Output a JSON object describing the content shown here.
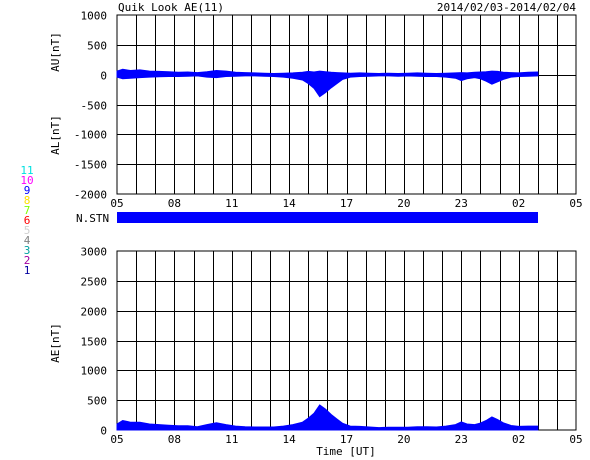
{
  "header": {
    "title": "Quik Look AE(11)",
    "date_range": "2014/02/03-2014/02/04"
  },
  "legend": {
    "station_label": "N.STN",
    "items": [
      {
        "label": "11",
        "color": "#00e0e0"
      },
      {
        "label": "10",
        "color": "#ff00ff"
      },
      {
        "label": "9",
        "color": "#0000ff"
      },
      {
        "label": "8",
        "color": "#ffe000"
      },
      {
        "label": "7",
        "color": "#80ff00"
      },
      {
        "label": "6",
        "color": "#ff0000"
      },
      {
        "label": "5",
        "color": "#d0d0d0"
      },
      {
        "label": "4",
        "color": "#808080"
      },
      {
        "label": "3",
        "color": "#00a0a0"
      },
      {
        "label": "2",
        "color": "#a000a0"
      },
      {
        "label": "1",
        "color": "#0000a0"
      }
    ]
  },
  "colors": {
    "fill": "#0000ff",
    "grid": "#000000",
    "axis": "#000000"
  },
  "chart_data": [
    {
      "type": "area",
      "name": "AU/AL",
      "ylabel_top": "AU[nT]",
      "ylabel_bottom": "AL[nT]",
      "ylim": [
        -2000,
        1000
      ],
      "yticks": [
        "1000",
        "500",
        "0",
        "-500",
        "-1000",
        "-1500",
        "-2000"
      ],
      "ytick_values": [
        1000,
        500,
        0,
        -500,
        -1000,
        -1500,
        -2000
      ],
      "xticks": [
        "05",
        "08",
        "11",
        "14",
        "17",
        "20",
        "23",
        "02",
        "05"
      ],
      "xlim_hours": [
        5,
        29
      ],
      "grid": true,
      "upper_series": {
        "name": "AU",
        "x": [
          5.0,
          5.3,
          5.7,
          6.2,
          6.7,
          7.2,
          7.7,
          8.2,
          8.7,
          9.2,
          9.7,
          10.2,
          10.7,
          11.2,
          11.7,
          12.2,
          12.7,
          13.2,
          13.7,
          14.2,
          14.7,
          15.0,
          15.3,
          15.6,
          15.9,
          16.2,
          16.5,
          16.8,
          17.2,
          17.7,
          18.2,
          18.7,
          19.2,
          19.7,
          20.2,
          20.7,
          21.2,
          21.7,
          22.2,
          22.7,
          23.0,
          23.3,
          23.7,
          24.0,
          24.3,
          24.6,
          24.9,
          25.2,
          25.6,
          26.0,
          26.5,
          27.0
        ],
        "y": [
          60,
          90,
          70,
          80,
          60,
          55,
          50,
          40,
          45,
          35,
          50,
          70,
          60,
          40,
          35,
          30,
          25,
          20,
          25,
          30,
          40,
          55,
          45,
          60,
          50,
          40,
          35,
          30,
          25,
          30,
          25,
          20,
          25,
          20,
          25,
          30,
          25,
          20,
          25,
          30,
          35,
          30,
          40,
          45,
          50,
          60,
          55,
          40,
          35,
          30,
          40,
          45
        ]
      },
      "lower_series": {
        "name": "AL",
        "x": [
          5.0,
          5.3,
          5.7,
          6.2,
          6.7,
          7.2,
          7.7,
          8.2,
          8.7,
          9.2,
          9.7,
          10.2,
          10.7,
          11.2,
          11.7,
          12.2,
          12.7,
          13.2,
          13.7,
          14.2,
          14.7,
          15.0,
          15.3,
          15.6,
          15.9,
          16.2,
          16.5,
          16.8,
          17.2,
          17.7,
          18.2,
          18.7,
          19.2,
          19.7,
          20.2,
          20.7,
          21.2,
          21.7,
          22.2,
          22.7,
          23.0,
          23.3,
          23.7,
          24.0,
          24.3,
          24.6,
          24.9,
          25.2,
          25.6,
          26.0,
          26.5,
          27.0
        ],
        "y": [
          -40,
          -70,
          -60,
          -50,
          -40,
          -35,
          -30,
          -30,
          -25,
          -20,
          -40,
          -50,
          -30,
          -25,
          -20,
          -20,
          -25,
          -30,
          -40,
          -60,
          -90,
          -150,
          -230,
          -370,
          -300,
          -220,
          -150,
          -80,
          -40,
          -30,
          -25,
          -20,
          -20,
          -25,
          -20,
          -25,
          -30,
          -30,
          -40,
          -60,
          -100,
          -70,
          -50,
          -70,
          -110,
          -160,
          -120,
          -80,
          -40,
          -30,
          -25,
          -20
        ]
      }
    },
    {
      "type": "area",
      "name": "AE",
      "ylabel": "AE[nT]",
      "xlabel": "Time [UT]",
      "ylim": [
        0,
        3000
      ],
      "yticks": [
        "3000",
        "2500",
        "2000",
        "1500",
        "1000",
        "500",
        "0"
      ],
      "ytick_values": [
        3000,
        2500,
        2000,
        1500,
        1000,
        500,
        0
      ],
      "xticks": [
        "05",
        "08",
        "11",
        "14",
        "17",
        "20",
        "23",
        "02",
        "05"
      ],
      "xlim_hours": [
        5,
        29
      ],
      "grid": true,
      "series": [
        {
          "x": [
            5.0,
            5.3,
            5.7,
            6.2,
            6.7,
            7.2,
            7.7,
            8.2,
            8.7,
            9.2,
            9.7,
            10.2,
            10.7,
            11.2,
            11.7,
            12.2,
            12.7,
            13.2,
            13.7,
            14.2,
            14.7,
            15.0,
            15.3,
            15.6,
            15.9,
            16.2,
            16.5,
            16.8,
            17.2,
            17.7,
            18.2,
            18.7,
            19.2,
            19.7,
            20.2,
            20.7,
            21.2,
            21.7,
            22.2,
            22.7,
            23.0,
            23.3,
            23.7,
            24.0,
            24.3,
            24.6,
            24.9,
            25.2,
            25.6,
            26.0,
            26.5,
            27.0
          ],
          "y": [
            100,
            160,
            130,
            130,
            100,
            90,
            80,
            70,
            70,
            55,
            90,
            120,
            90,
            65,
            55,
            50,
            50,
            50,
            65,
            90,
            130,
            200,
            280,
            420,
            350,
            260,
            185,
            110,
            65,
            60,
            50,
            40,
            45,
            45,
            45,
            55,
            55,
            50,
            65,
            90,
            135,
            100,
            90,
            115,
            160,
            220,
            175,
            120,
            75,
            60,
            65,
            65
          ]
        }
      ]
    }
  ]
}
